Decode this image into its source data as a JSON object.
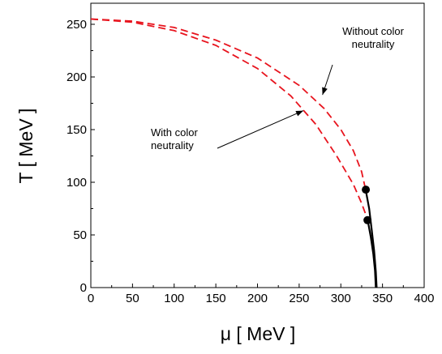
{
  "chart_data": {
    "type": "line",
    "title": "",
    "xlabel": "μ  [ MeV ]",
    "ylabel": "T  [ MeV ]",
    "xlim": [
      0,
      400
    ],
    "ylim": [
      0,
      270
    ],
    "x_ticks": [
      0,
      50,
      100,
      150,
      200,
      250,
      300,
      350,
      400
    ],
    "y_ticks": [
      0,
      50,
      100,
      150,
      200,
      250
    ],
    "grid": false,
    "legend": "none",
    "series": [
      {
        "color": "#e8141e",
        "style": "dashed",
        "points": [
          [
            0,
            255
          ],
          [
            50,
            253
          ],
          [
            100,
            247
          ],
          [
            150,
            235
          ],
          [
            200,
            218
          ],
          [
            250,
            192
          ],
          [
            280,
            170
          ],
          [
            300,
            150
          ],
          [
            315,
            130
          ],
          [
            325,
            110
          ],
          [
            330,
            92
          ]
        ]
      },
      {
        "color": "#e8141e",
        "style": "dashed",
        "points": [
          [
            0,
            255
          ],
          [
            50,
            252
          ],
          [
            100,
            244
          ],
          [
            150,
            230
          ],
          [
            200,
            208
          ],
          [
            240,
            182
          ],
          [
            270,
            155
          ],
          [
            295,
            125
          ],
          [
            315,
            98
          ],
          [
            325,
            80
          ],
          [
            332,
            65
          ]
        ]
      },
      {
        "color": "#000000",
        "style": "solid",
        "points": [
          [
            330,
            92
          ],
          [
            334,
            75
          ],
          [
            337,
            55
          ],
          [
            340,
            35
          ],
          [
            342,
            15
          ],
          [
            343,
            0
          ]
        ]
      },
      {
        "color": "#000000",
        "style": "solid",
        "points": [
          [
            332,
            65
          ],
          [
            336,
            48
          ],
          [
            339,
            32
          ],
          [
            341,
            16
          ],
          [
            342,
            0
          ]
        ]
      }
    ],
    "critical_points": [
      {
        "x": 330,
        "y": 93
      },
      {
        "x": 332,
        "y": 64
      }
    ],
    "annotations": [
      {
        "lines": [
          "Without color",
          "neutrality"
        ],
        "arrow_to": [
          278,
          183
        ]
      },
      {
        "lines": [
          "With color",
          "neutrality"
        ],
        "arrow_to": [
          255,
          168
        ]
      }
    ]
  }
}
